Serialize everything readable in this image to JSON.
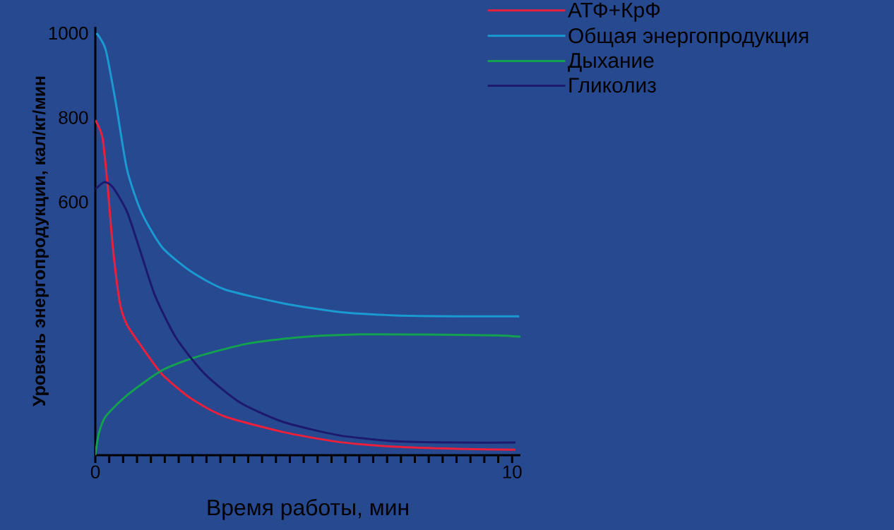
{
  "chart_data": {
    "type": "line",
    "xlabel": "Время работы, мин",
    "ylabel": "Уровень энергопродукции, кал/кг/мин",
    "xlim": [
      0,
      10.2
    ],
    "ylim": [
      0,
      1015
    ],
    "xticks": [
      0,
      {
        "value": 0.333,
        "label": null
      },
      {
        "value": 0.667,
        "label": null
      },
      {
        "value": 1,
        "label": null
      },
      {
        "value": 1.333,
        "label": null
      },
      {
        "value": 1.667,
        "label": null
      },
      {
        "value": 2,
        "label": null
      },
      {
        "value": 2.333,
        "label": null
      },
      {
        "value": 2.667,
        "label": null
      },
      {
        "value": 3,
        "label": null
      },
      {
        "value": 3.333,
        "label": null
      },
      {
        "value": 3.667,
        "label": null
      },
      {
        "value": 4,
        "label": null
      },
      {
        "value": 4.333,
        "label": null
      },
      {
        "value": 4.667,
        "label": null
      },
      {
        "value": 5,
        "label": null
      },
      {
        "value": 5.333,
        "label": null
      },
      {
        "value": 5.667,
        "label": null
      },
      {
        "value": 6,
        "label": null
      },
      {
        "value": 6.333,
        "label": null
      },
      {
        "value": 6.667,
        "label": null
      },
      {
        "value": 7,
        "label": null
      },
      {
        "value": 7.333,
        "label": null
      },
      {
        "value": 7.667,
        "label": null
      },
      {
        "value": 8,
        "label": null
      },
      {
        "value": 8.333,
        "label": null
      },
      {
        "value": 8.667,
        "label": null
      },
      {
        "value": 9,
        "label": null
      },
      {
        "value": 9.333,
        "label": null
      },
      {
        "value": 9.667,
        "label": null
      },
      10
    ],
    "yticks": [
      600,
      800,
      1000
    ],
    "legend": "top right",
    "marker": "none",
    "series": [
      {
        "name": "АТФ+КрФ",
        "color": "#e8203c",
        "x": [
          0,
          0.17,
          0.29,
          0.42,
          0.59,
          0.76,
          1.1,
          1.6,
          2.3,
          3.1,
          4.5,
          5.8,
          7.2,
          8.7,
          10.08
        ],
        "values": [
          794,
          753,
          644,
          493,
          360,
          309,
          259,
          192,
          134,
          92,
          55,
          32,
          20,
          15,
          13
        ]
      },
      {
        "name": "Общая энергопродукция",
        "color": "#1a9ad0",
        "x": [
          0.03,
          0.25,
          0.5,
          0.76,
          1.1,
          1.6,
          2.3,
          3.1,
          4.5,
          5.8,
          7.2,
          8.7,
          10.17
        ],
        "values": [
          1000,
          960,
          830,
          677,
          577,
          493,
          435,
          393,
          360,
          340,
          331,
          329,
          329
        ]
      },
      {
        "name": "Дыхание",
        "color": "#13a050",
        "x": [
          0,
          0.08,
          0.25,
          0.76,
          1.6,
          2.46,
          3.64,
          4.83,
          6.2,
          7.9,
          9.6,
          10.2
        ],
        "values": [
          0,
          50,
          92,
          142,
          201,
          234,
          264,
          279,
          286,
          286,
          284,
          281
        ]
      },
      {
        "name": "Гликолиз",
        "color": "#1d1a6e",
        "x": [
          0,
          0.22,
          0.42,
          0.76,
          1.1,
          1.44,
          1.95,
          2.63,
          3.47,
          4.5,
          5.85,
          7.2,
          8.7,
          10.08
        ],
        "values": [
          630,
          647,
          635,
          577,
          477,
          376,
          276,
          192,
          125,
          79,
          47,
          33,
          30,
          30
        ]
      }
    ]
  }
}
